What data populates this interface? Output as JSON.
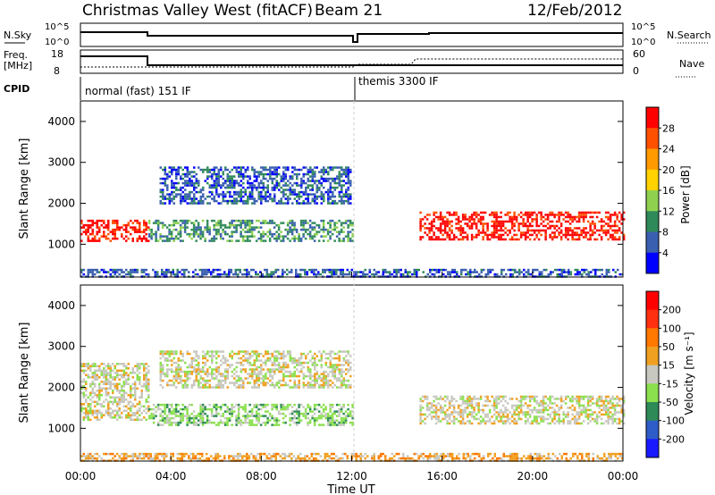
{
  "header": {
    "station": "Christmas Valley West (fitACF)",
    "beam": "Beam 21",
    "date": "12/Feb/2012"
  },
  "top_panels": {
    "nsky_label": "N.Sky",
    "nsky_ticks": [
      "10^5",
      "10^0"
    ],
    "nsearch_label": "N.Search",
    "nsearch_ticks": [
      "10^5",
      "10^0"
    ],
    "freq_label_line1": "Freq.",
    "freq_label_line2": "[MHz]",
    "freq_ticks": [
      "18",
      "8"
    ],
    "nave_label": "Nave",
    "nave_ticks": [
      "60",
      "0"
    ],
    "cpid_label": "CPID",
    "cpid_segments": [
      "normal (fast) 151 IF",
      "themis 3300 IF"
    ]
  },
  "x_axis": {
    "label": "Time UT",
    "ticks": [
      "00:00",
      "04:00",
      "08:00",
      "12:00",
      "16:00",
      "20:00",
      "00:00"
    ]
  },
  "colors": {
    "power_scale": [
      "#0000ff",
      "#3a5fb0",
      "#2f8a5a",
      "#8fd14f",
      "#ffd200",
      "#ff9a00",
      "#ff5000",
      "#ff0000"
    ],
    "velocity_scale": [
      "#1a1aff",
      "#2e5cc8",
      "#2e8b57",
      "#8be04e",
      "#c8c8c0",
      "#f0a020",
      "#ff7800",
      "#ff3010",
      "#ff0000"
    ]
  },
  "chart_data": [
    {
      "type": "heatmap",
      "title": "Power",
      "ylabel": "Slant Range [km]",
      "ylim": [
        200,
        4500
      ],
      "yticks": [
        "1000",
        "2000",
        "3000",
        "4000"
      ],
      "xlim": [
        "00:00",
        "24:00"
      ],
      "colorbar_label": "Power [dB]",
      "colorbar_ticks": [
        "28",
        "24",
        "20",
        "16",
        "12",
        "8",
        "4"
      ],
      "bands": [
        {
          "name": "early-east",
          "start_h": 0.0,
          "end_h": 3.0,
          "range_km": [
            1100,
            1600
          ],
          "level": 7
        },
        {
          "name": "morning",
          "start_h": 3.0,
          "end_h": 12.0,
          "range_km": [
            1100,
            1600
          ],
          "level": 2
        },
        {
          "name": "upper-arc",
          "start_h": 3.5,
          "end_h": 12.0,
          "range_km": [
            2000,
            2900
          ],
          "level": 1
        },
        {
          "name": "themis-main",
          "start_h": 15.0,
          "end_h": 24.0,
          "range_km": [
            1100,
            1800
          ],
          "level": 7
        },
        {
          "name": "ground-scatter",
          "start_h": 0.0,
          "end_h": 24.0,
          "range_km": [
            200,
            400
          ],
          "level": 1
        }
      ]
    },
    {
      "type": "heatmap",
      "title": "Velocity",
      "ylabel": "Slant Range [km]",
      "ylim": [
        200,
        4500
      ],
      "yticks": [
        "1000",
        "2000",
        "3000",
        "4000"
      ],
      "xlim": [
        "00:00",
        "24:00"
      ],
      "colorbar_label": "Velocity [m s⁻¹]",
      "colorbar_ticks": [
        "200",
        "100",
        "50",
        "15",
        "-15",
        "-50",
        "-100",
        "-200"
      ],
      "bands": [
        {
          "name": "early",
          "start_h": 0.0,
          "end_h": 3.0,
          "range_km": [
            1200,
            2600
          ],
          "level": 4
        },
        {
          "name": "morning",
          "start_h": 3.0,
          "end_h": 12.0,
          "range_km": [
            1100,
            1600
          ],
          "level": 3
        },
        {
          "name": "upper-arc",
          "start_h": 3.5,
          "end_h": 12.0,
          "range_km": [
            2000,
            2900
          ],
          "level": 4
        },
        {
          "name": "themis-main",
          "start_h": 15.0,
          "end_h": 24.0,
          "range_km": [
            1100,
            1800
          ],
          "level": 4
        },
        {
          "name": "ground-scatter",
          "start_h": 0.0,
          "end_h": 24.0,
          "range_km": [
            200,
            400
          ],
          "level": 5
        }
      ]
    }
  ]
}
